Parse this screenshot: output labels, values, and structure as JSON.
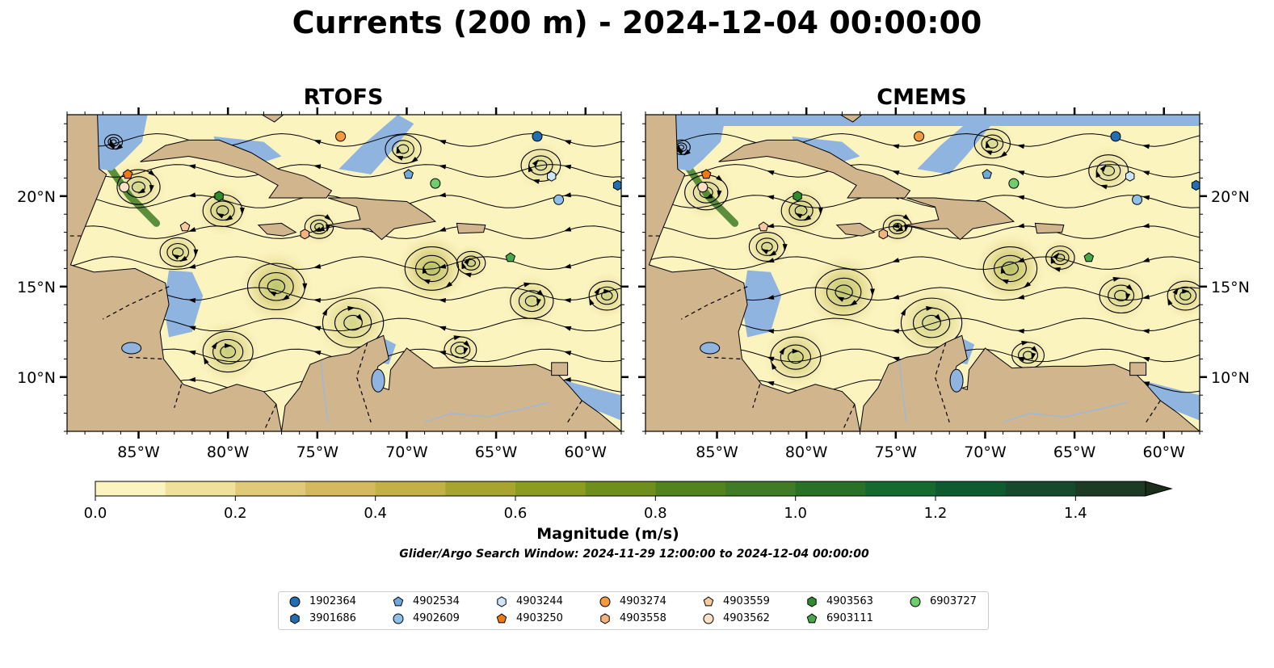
{
  "figure": {
    "title": "Currents (200 m) - 2024-12-04 00:00:00",
    "panels": [
      {
        "title": "RTOFS"
      },
      {
        "title": "CMEMS"
      }
    ]
  },
  "map": {
    "lon_ticks": [
      "85°W",
      "80°W",
      "75°W",
      "70°W",
      "65°W",
      "60°W"
    ],
    "lat_ticks": [
      "20°N",
      "15°N",
      "10°N"
    ],
    "extent": {
      "lon": [
        -89,
        -58
      ],
      "lat": [
        7,
        24.5
      ]
    },
    "colors": {
      "ocean": "#8fb4e0",
      "land": "#d1b58c",
      "low_speed": "#fbf4bf",
      "high_speed": "#1b2e1a"
    }
  },
  "colorbar": {
    "label": "Magnitude (m/s)",
    "ticks": [
      "0.0",
      "0.2",
      "0.4",
      "0.6",
      "0.8",
      "1.0",
      "1.2",
      "1.4"
    ],
    "range": [
      0,
      1.5
    ],
    "step": 0.1,
    "extend": "max",
    "colors": [
      "#fbf4bf",
      "#efe09a",
      "#e0c978",
      "#d4b95e",
      "#c3b046",
      "#a7a530",
      "#8b9c20",
      "#6f8f1c",
      "#52841e",
      "#3f7c25",
      "#287228",
      "#146a2f",
      "#0e5b2f",
      "#164a2c",
      "#1b3b25",
      "#1b2e1a"
    ]
  },
  "search_window": "Glider/Argo Search Window: 2024-11-29 12:00:00 to 2024-12-04 00:00:00",
  "floats": [
    {
      "id": "1902364",
      "marker": "circle",
      "color": "#1f6fb2",
      "lon": -62.7,
      "lat": 23.3
    },
    {
      "id": "3901686",
      "marker": "hexagon",
      "color": "#1f6fb2",
      "lon": -58.2,
      "lat": 20.6
    },
    {
      "id": "4902534",
      "marker": "pentagon",
      "color": "#6fa8dc",
      "lon": -69.9,
      "lat": 21.2
    },
    {
      "id": "4902609",
      "marker": "circle",
      "color": "#8ec0e8",
      "lon": -61.5,
      "lat": 19.8
    },
    {
      "id": "4903244",
      "marker": "hexagon",
      "color": "#cde6f7",
      "lon": -61.9,
      "lat": 21.1
    },
    {
      "id": "4903250",
      "marker": "pentagon",
      "color": "#f07a10",
      "lon": -85.6,
      "lat": 21.2
    },
    {
      "id": "4903274",
      "marker": "circle",
      "color": "#f59a3c",
      "lon": -73.7,
      "lat": 23.3
    },
    {
      "id": "4903558",
      "marker": "hexagon",
      "color": "#f6b27a",
      "lon": -75.7,
      "lat": 17.9
    },
    {
      "id": "4903559",
      "marker": "pentagon",
      "color": "#f8caa0",
      "lon": -82.4,
      "lat": 18.3
    },
    {
      "id": "4903562",
      "marker": "circle",
      "color": "#fde0c6",
      "lon": -85.8,
      "lat": 20.5
    },
    {
      "id": "4903563",
      "marker": "hexagon",
      "color": "#2e8b2e",
      "lon": -80.5,
      "lat": 20.0
    },
    {
      "id": "6903111",
      "marker": "pentagon",
      "color": "#48a848",
      "lon": -64.2,
      "lat": 16.6
    },
    {
      "id": "6903727",
      "marker": "circle",
      "color": "#6ccf6c",
      "lon": -68.4,
      "lat": 20.7
    }
  ]
}
